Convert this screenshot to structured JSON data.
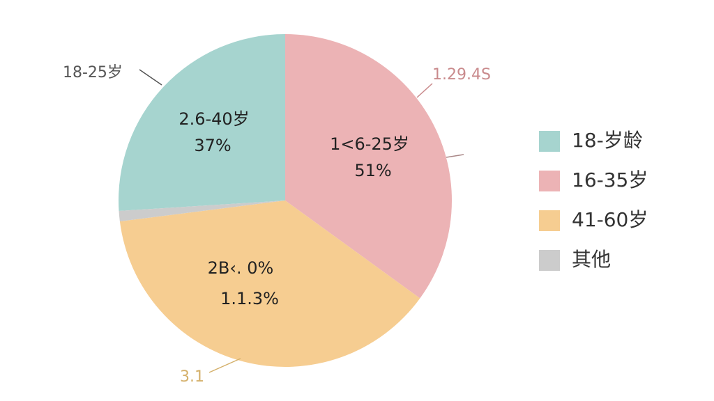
{
  "chart_data": {
    "type": "pie",
    "categories": [
      "18-岁龄",
      "16-35岁",
      "41-60岁",
      "其他"
    ],
    "values": [
      26,
      35,
      38,
      1
    ],
    "colors": [
      "#a6d4cf",
      "#ecb3b5",
      "#f6cd91",
      "#cccccc"
    ],
    "legend": "right",
    "slice_labels": [
      [
        "2.6-40岁",
        "37%"
      ],
      [
        "1<6-25岁",
        "51%"
      ],
      [
        "2B‹. 0%",
        "1.1.3%"
      ]
    ],
    "callouts": [
      {
        "text": "18-25岁",
        "color": "#555555"
      },
      {
        "text": "1.29.4S",
        "color": "#c98a8c"
      },
      {
        "text": "3.1",
        "color": "#d4b06a"
      }
    ]
  }
}
